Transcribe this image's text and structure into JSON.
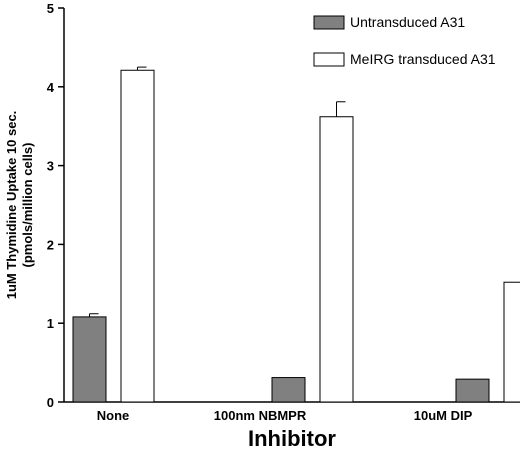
{
  "chart_data": {
    "type": "bar",
    "title": "",
    "xlabel": "Inhibitor",
    "ylabel_line1": "1uM Thymidine Uptake 10 sec.",
    "ylabel_line2": "(pmols/million cells)",
    "ylim": [
      0,
      5
    ],
    "yticks": [
      "0",
      "1",
      "2",
      "3",
      "4",
      "5"
    ],
    "categories": [
      "None",
      "100nm NBMPR",
      "10uM DIP"
    ],
    "legend_position": "top-right",
    "grid": false,
    "series": [
      {
        "name": "Untransduced A31",
        "color": "#808080",
        "values": [
          1.08,
          0.31,
          0.29
        ],
        "errors": [
          0.04,
          0.0,
          0.0
        ]
      },
      {
        "name": "MeIRG transduced A31",
        "color": "#ffffff",
        "values": [
          4.21,
          3.62,
          1.52
        ],
        "errors": [
          0.04,
          0.19,
          0.02
        ]
      }
    ]
  }
}
